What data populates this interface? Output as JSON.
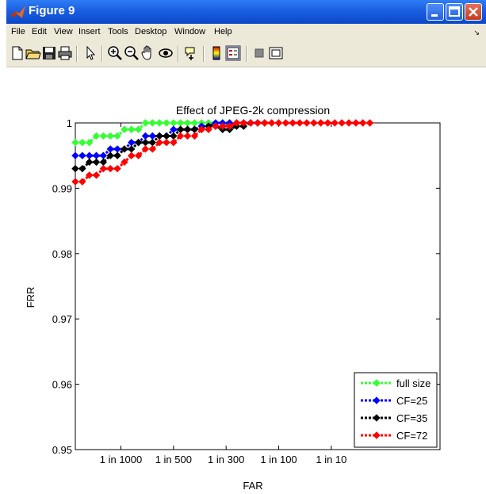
{
  "window": {
    "title": "Figure 9"
  },
  "menu": [
    "File",
    "Edit",
    "View",
    "Insert",
    "Tools",
    "Desktop",
    "Window",
    "Help"
  ],
  "toolbar_icons": [
    "new-figure-icon",
    "open-file-icon",
    "save-icon",
    "print-icon",
    "pointer-icon",
    "zoom-in-icon",
    "zoom-out-icon",
    "pan-icon",
    "rotate-3d-icon",
    "data-cursor-icon",
    "colorbar-icon",
    "legend-icon",
    "hide-plot-tools-icon",
    "show-plot-tools-icon"
  ],
  "colors": {
    "full_size": "#33ff33",
    "cf25": "#0000ff",
    "cf35": "#000000",
    "cf72": "#ff0000",
    "titlebar": "#1a5fe0"
  },
  "chart_data": {
    "type": "line",
    "title": "Effect of JPEG-2k compression",
    "xlabel": "FAR",
    "ylabel": "FRR",
    "ylim": [
      0.95,
      1.0
    ],
    "yticks": [
      0.95,
      0.96,
      0.97,
      0.98,
      0.99,
      1
    ],
    "ytick_labels": [
      "0.95",
      "0.96",
      "0.97",
      "0.98",
      "0.99",
      "1"
    ],
    "xtick_labels": [
      "1 in 1000",
      "1 in 500",
      "1 in 300",
      "1 in 100",
      "1 in 10"
    ],
    "grid": true,
    "legend_position": "bottom-right",
    "series": [
      {
        "name": "full size",
        "x": [
          0,
          1,
          2,
          3,
          4,
          5,
          6,
          7,
          8,
          9,
          10,
          11,
          12,
          13,
          14,
          15,
          16,
          17,
          18,
          19,
          20,
          21,
          22,
          23,
          24
        ],
        "y": [
          0.997,
          0.997,
          0.997,
          0.998,
          0.998,
          0.998,
          0.998,
          0.999,
          0.999,
          0.999,
          1,
          1,
          1,
          1,
          1,
          1,
          1,
          1,
          1,
          1,
          1,
          1,
          1,
          1,
          1
        ]
      },
      {
        "name": "CF=25",
        "x": [
          0,
          1,
          2,
          3,
          4,
          5,
          6,
          7,
          8,
          9,
          10,
          11,
          12,
          13,
          14,
          15,
          16,
          17,
          18,
          19,
          20,
          21,
          22,
          23,
          24,
          25,
          26
        ],
        "y": [
          0.995,
          0.995,
          0.995,
          0.995,
          0.995,
          0.996,
          0.996,
          0.996,
          0.997,
          0.997,
          0.998,
          0.998,
          0.998,
          0.998,
          0.999,
          0.999,
          0.999,
          0.999,
          0.9995,
          0.9995,
          1,
          1,
          1,
          1,
          1,
          1,
          1
        ]
      },
      {
        "name": "CF=35",
        "x": [
          0,
          1,
          2,
          3,
          4,
          5,
          6,
          7,
          8,
          9,
          10,
          11,
          12,
          13,
          14,
          15,
          16,
          17,
          18,
          19,
          20,
          21,
          22,
          23,
          24,
          25,
          26,
          27
        ],
        "y": [
          0.993,
          0.993,
          0.994,
          0.994,
          0.994,
          0.995,
          0.995,
          0.996,
          0.996,
          0.997,
          0.997,
          0.997,
          0.998,
          0.998,
          0.998,
          0.999,
          0.999,
          0.999,
          0.999,
          0.9995,
          0.9995,
          0.999,
          0.999,
          0.9995,
          0.9995,
          1,
          1,
          1
        ]
      },
      {
        "name": "CF=72",
        "x": [
          0,
          1,
          2,
          3,
          4,
          5,
          6,
          7,
          8,
          9,
          10,
          11,
          12,
          13,
          14,
          15,
          16,
          17,
          18,
          19,
          20,
          21,
          22,
          23,
          24,
          25,
          26,
          27,
          28,
          29,
          30,
          31,
          32,
          33,
          34,
          35,
          36,
          37,
          38,
          39,
          40,
          41,
          42
        ],
        "y": [
          0.991,
          0.991,
          0.992,
          0.992,
          0.993,
          0.993,
          0.993,
          0.994,
          0.995,
          0.995,
          0.996,
          0.996,
          0.997,
          0.997,
          0.997,
          0.998,
          0.998,
          0.998,
          0.999,
          0.999,
          0.9995,
          0.9995,
          0.9995,
          1,
          1,
          1,
          1,
          1,
          1,
          1,
          1,
          1,
          1,
          1,
          1,
          1,
          1,
          1,
          1,
          1,
          1,
          1,
          1
        ]
      }
    ]
  }
}
